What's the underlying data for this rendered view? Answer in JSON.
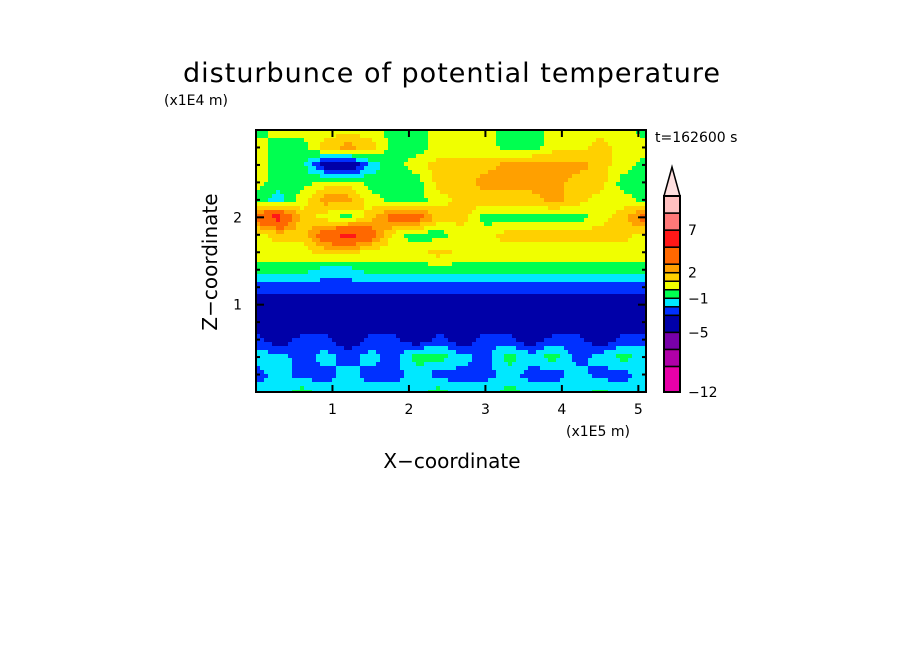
{
  "chart_data": {
    "type": "heatmap",
    "subtype": "filled-contour",
    "title": "disturbunce of potential temperature",
    "xlabel": "X−coordinate",
    "ylabel": "Z−coordinate",
    "x_unit": "(x1E5 m)",
    "y_unit": "(x1E4 m)",
    "time_label": "t=162600 s",
    "xlim": [
      0,
      5.1
    ],
    "ylim": [
      0,
      3.0
    ],
    "x_ticks": [
      "1",
      "2",
      "3",
      "4",
      "5"
    ],
    "y_ticks": [
      "1",
      "2"
    ],
    "colorbar": {
      "levels": [
        -12,
        -9,
        -7,
        -5,
        -3,
        -2,
        -1,
        0,
        1,
        2,
        3,
        5,
        7,
        9,
        11
      ],
      "colors": [
        "#e800a8",
        "#b000a8",
        "#7800a8",
        "#0000a8",
        "#0030ff",
        "#00e8ff",
        "#00ff50",
        "#f0ff00",
        "#ffd000",
        "#ffa000",
        "#ff6800",
        "#ff1818",
        "#ff7878",
        "#ffc0c0"
      ],
      "over_color": "#ffe0e0",
      "tick_labels": [
        "7",
        "2",
        "−1",
        "−5",
        "−12"
      ],
      "tick_values": [
        7,
        2,
        -1,
        -5,
        -12
      ]
    },
    "x": [
      0,
      0.3,
      0.6,
      0.9,
      1.2,
      1.5,
      1.8,
      2.1,
      2.4,
      2.7,
      3.0,
      3.3,
      3.6,
      3.9,
      4.2,
      4.5,
      4.8,
      5.1
    ],
    "z": [
      3.0,
      2.8,
      2.6,
      2.4,
      2.2,
      2.0,
      1.8,
      1.6,
      1.4,
      1.2,
      1.0,
      0.8,
      0.6,
      0.4,
      0.2,
      0.0
    ],
    "values": [
      [
        -0.5,
        0.5,
        0.5,
        0.5,
        0.5,
        0.5,
        -0.5,
        -0.5,
        0.5,
        0.5,
        0.5,
        -0.5,
        -0.5,
        0.5,
        0.5,
        0.5,
        0.5,
        -0.5
      ],
      [
        0.5,
        -0.5,
        -0.5,
        1.5,
        2.5,
        1.5,
        -0.5,
        -0.5,
        0.5,
        0.5,
        0.5,
        -0.5,
        -0.5,
        0.5,
        0.5,
        1.5,
        0.5,
        0.5
      ],
      [
        0.5,
        -0.5,
        -0.5,
        -4,
        -5,
        -1.5,
        -0.5,
        0.5,
        1.5,
        1.5,
        1.5,
        2.5,
        2.5,
        2.5,
        2.5,
        1.5,
        0.5,
        -0.5
      ],
      [
        0.5,
        -0.5,
        -0.5,
        0.5,
        0.5,
        -0.5,
        -0.5,
        -0.5,
        1.5,
        1.5,
        2.5,
        2.5,
        2.5,
        2.5,
        1.5,
        1.5,
        -0.5,
        -0.5
      ],
      [
        -0.5,
        -1.5,
        0.5,
        2.5,
        2.5,
        0.5,
        -0.5,
        -0.5,
        0.5,
        1.5,
        1.5,
        1.5,
        1.5,
        2.5,
        1.5,
        0.5,
        0.5,
        -0.5
      ],
      [
        4,
        6,
        1.5,
        0.5,
        -0.5,
        1.5,
        4,
        4,
        1.5,
        1.5,
        -0.5,
        -0.5,
        -0.5,
        -0.5,
        -0.5,
        0.5,
        1.5,
        4
      ],
      [
        0.5,
        1.5,
        1.5,
        4,
        6,
        4,
        0.5,
        -0.5,
        -0.5,
        0.5,
        0.5,
        1.5,
        1.5,
        1.5,
        1.5,
        1.5,
        1.5,
        0.5
      ],
      [
        0.5,
        0.5,
        0.5,
        1.5,
        1.5,
        0.5,
        0.5,
        0.5,
        1.5,
        0.5,
        0.5,
        0.5,
        0.5,
        0.5,
        0.5,
        0.5,
        0.5,
        0.5
      ],
      [
        -0.5,
        -0.5,
        -0.5,
        -1.5,
        -1.5,
        -0.5,
        -0.5,
        -0.5,
        -0.5,
        -0.5,
        -0.5,
        -0.5,
        -0.5,
        -0.5,
        -0.5,
        -0.5,
        -0.5,
        -0.5
      ],
      [
        -2.5,
        -2.5,
        -2.5,
        -2.5,
        -2.5,
        -2.5,
        -2.5,
        -2.5,
        -2.5,
        -2.5,
        -2.5,
        -2.5,
        -2.5,
        -2.5,
        -2.5,
        -2.5,
        -2.5,
        -2.5
      ],
      [
        -4,
        -4,
        -4,
        -4,
        -4,
        -4,
        -4,
        -4,
        -4,
        -4,
        -4,
        -4,
        -4,
        -4,
        -4,
        -4,
        -4,
        -4
      ],
      [
        -4,
        -4,
        -4,
        -4,
        -4,
        -4,
        -4,
        -4,
        -4,
        -4,
        -4,
        -4,
        -4,
        -4,
        -4,
        -4,
        -4,
        -4
      ],
      [
        -2.5,
        -4,
        -2.5,
        -2.5,
        -4,
        -2.5,
        -2.5,
        -4,
        -2.5,
        -4,
        -2.5,
        -2.5,
        -4,
        -2.5,
        -2.5,
        -4,
        -2.5,
        -2.5
      ],
      [
        -1.5,
        -1.5,
        -2.5,
        -1.5,
        -2.5,
        -1.5,
        -2.5,
        -0.5,
        -0.5,
        -1.5,
        -2.5,
        -0.5,
        -1.5,
        -0.5,
        -2.5,
        -1.5,
        -0.5,
        -1.5
      ],
      [
        -2.5,
        -1.5,
        -2.5,
        -2.5,
        -1.5,
        -2.5,
        -2.5,
        -1.5,
        -2.5,
        -2.5,
        -2.5,
        -1.5,
        -2.5,
        -2.5,
        -1.5,
        -2.5,
        -2.5,
        -1.5
      ],
      [
        -1.5,
        -1.5,
        -0.5,
        -1.5,
        -1.5,
        -1.5,
        -1.5,
        -1.5,
        -0.5,
        -1.5,
        -1.5,
        -0.5,
        -1.5,
        -1.5,
        -1.5,
        -0.5,
        -1.5,
        -1.5
      ]
    ]
  }
}
